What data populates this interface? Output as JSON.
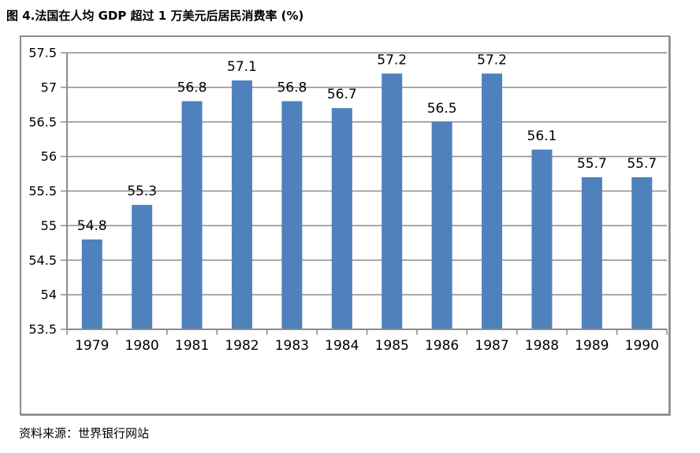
{
  "page": {
    "title": "图 4.法国在人均 GDP 超过 1 万美元后居民消费率 (%)",
    "source_note": "资料来源：世界银行网站"
  },
  "chart_data": {
    "type": "bar",
    "title": "图 4.法国在人均 GDP 超过 1 万美元后居民消费率 (%)",
    "categories": [
      "1979",
      "1980",
      "1981",
      "1982",
      "1983",
      "1984",
      "1985",
      "1986",
      "1987",
      "1988",
      "1989",
      "1990"
    ],
    "values": [
      54.8,
      55.3,
      56.8,
      57.1,
      56.8,
      56.7,
      57.2,
      56.5,
      57.2,
      56.1,
      55.7,
      55.7
    ],
    "xlabel": "",
    "ylabel": "",
    "ylim": [
      53.5,
      57.5
    ],
    "yticks": [
      53.5,
      54,
      54.5,
      55,
      55.5,
      56,
      56.5,
      57,
      57.5
    ],
    "grid": true,
    "legend": "none",
    "data_labels": true,
    "source": "资料来源：世界银行网站",
    "colors": {
      "bar": "#4F81BD",
      "grid": "#8c8c8c",
      "axis": "#8c8c8c",
      "frame_border": "#8c8c8c",
      "text": "#000000"
    }
  }
}
